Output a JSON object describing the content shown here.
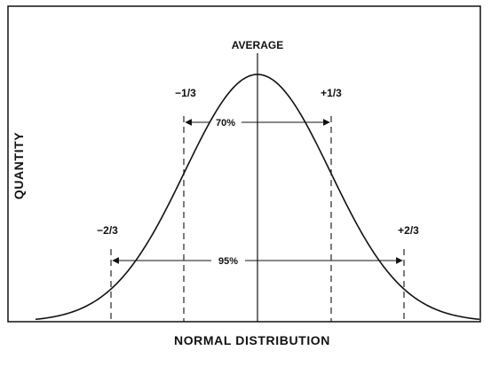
{
  "diagram": {
    "average_label": "AVERAGE",
    "x_axis_label": "NORMAL DISTRIBUTION",
    "y_axis_label": "QUANTITY",
    "markers": {
      "minus_one_third": "−1/3",
      "plus_one_third": "+1/3",
      "minus_two_thirds": "−2/3",
      "plus_two_thirds": "+2/3"
    },
    "spans": {
      "inner_percent": "70%",
      "outer_percent": "95%"
    }
  }
}
